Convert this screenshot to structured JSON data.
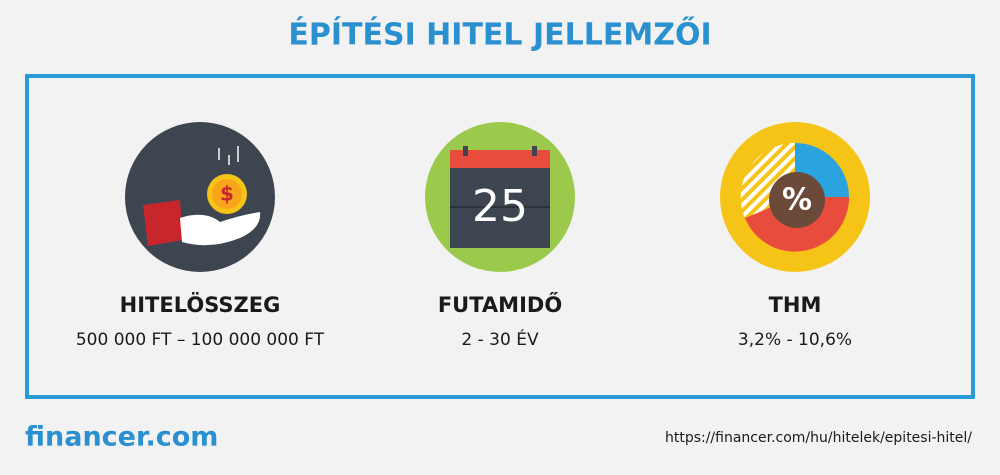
{
  "header": {
    "title": "ÉPÍTÉSI HITEL JELLEMZŐI"
  },
  "items": [
    {
      "icon_text": "$",
      "label": "HITELÖSSZEG",
      "value": "500 000 FT – 100 000 000 FT"
    },
    {
      "icon_text": "25",
      "label": "FUTAMIDŐ",
      "value": "2 - 30 ÉV"
    },
    {
      "icon_text": "%",
      "label": "THM",
      "value": "3,2% - 10,6%"
    }
  ],
  "footer": {
    "logo": "financer.com",
    "url": "https://financer.com/hu/hitelek/epitesi-hitel/"
  }
}
